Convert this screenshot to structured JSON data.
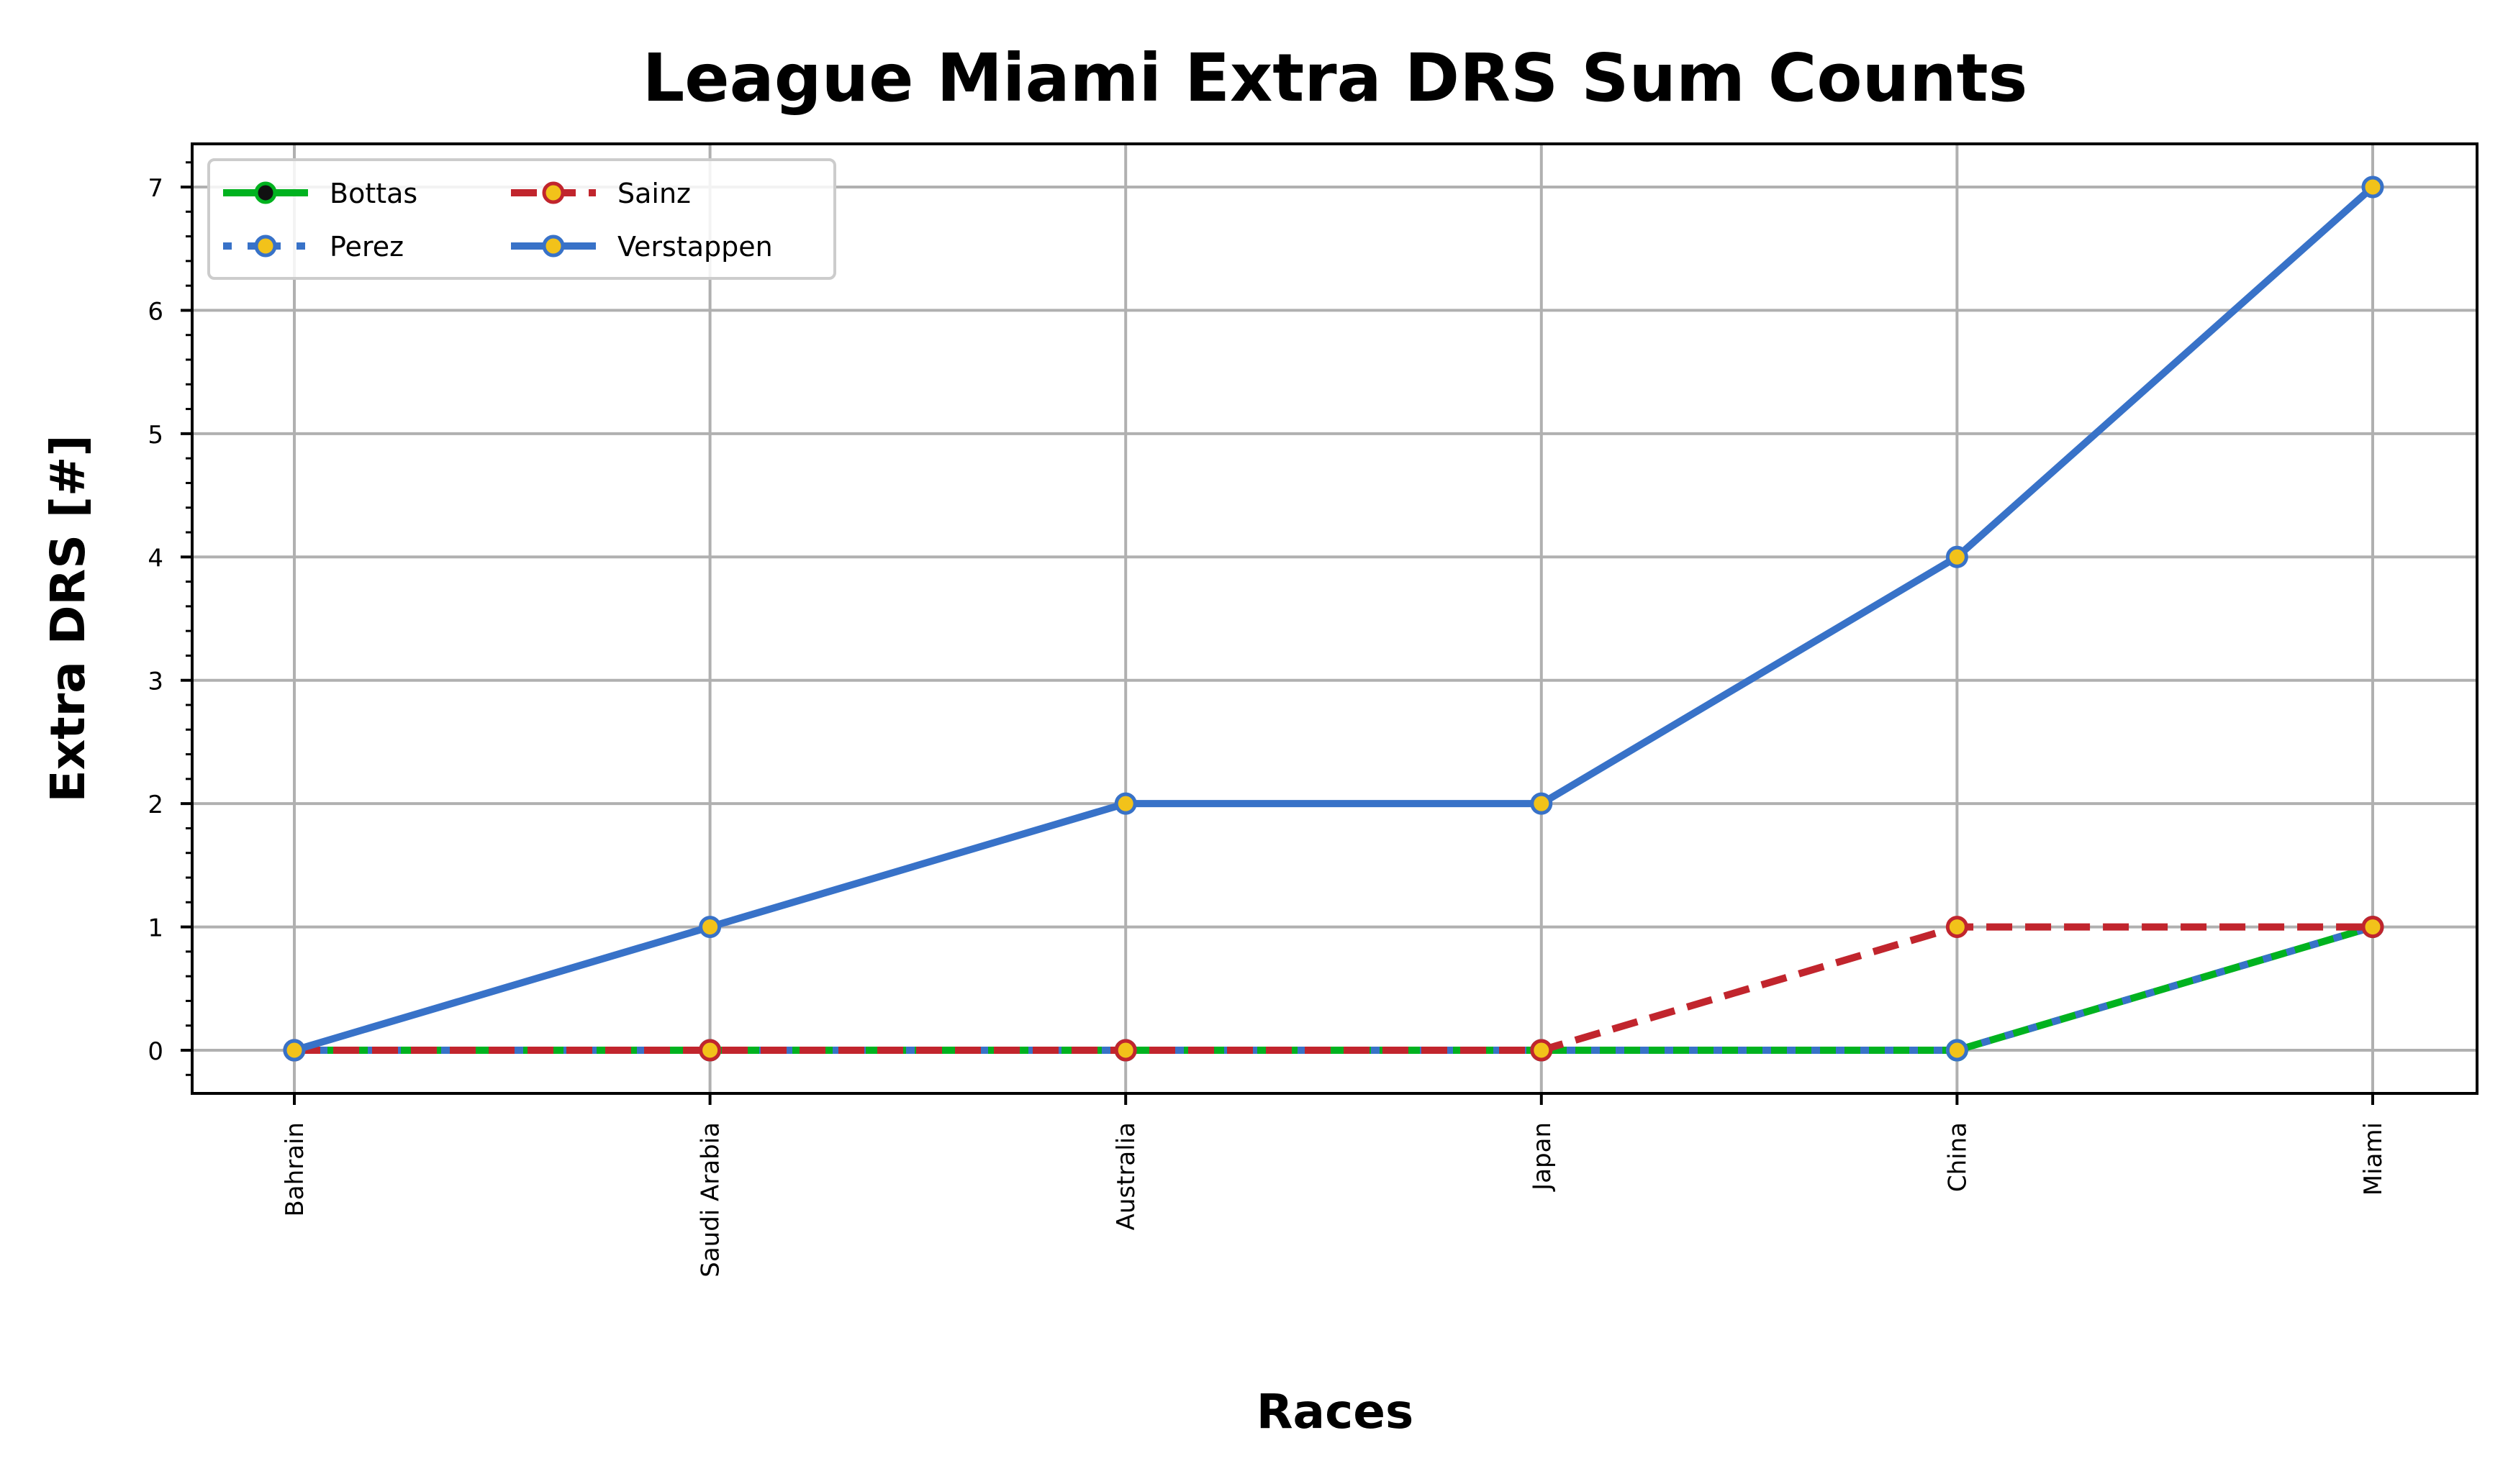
{
  "chart_data": {
    "type": "line",
    "title": "League Miami Extra DRS Sum Counts",
    "xlabel": "Races",
    "ylabel": "Extra DRS [#]",
    "categories": [
      "Bahrain",
      "Saudi Arabia",
      "Australia",
      "Japan",
      "China",
      "Miami"
    ],
    "ylim": [
      -0.35,
      7.35
    ],
    "yticks": [
      0,
      1,
      2,
      3,
      4,
      5,
      6,
      7
    ],
    "grid": true,
    "legend_position": "top-left",
    "series": [
      {
        "name": "Bottas",
        "values": [
          0,
          0,
          0,
          0,
          0,
          1
        ],
        "color": "#00b21f",
        "marker_face": "#111111",
        "style": "solid"
      },
      {
        "name": "Perez",
        "values": [
          0,
          0,
          0,
          0,
          0,
          1
        ],
        "color": "#3872c8",
        "marker_face": "#f2c21a",
        "style": "dotted"
      },
      {
        "name": "Sainz",
        "values": [
          0,
          0,
          0,
          0,
          1,
          1
        ],
        "color": "#c1252d",
        "marker_face": "#f2c21a",
        "style": "dashed"
      },
      {
        "name": "Verstappen",
        "values": [
          0,
          1,
          2,
          2,
          4,
          7
        ],
        "color": "#3872c8",
        "marker_face": "#f2c21a",
        "style": "solid"
      }
    ]
  }
}
